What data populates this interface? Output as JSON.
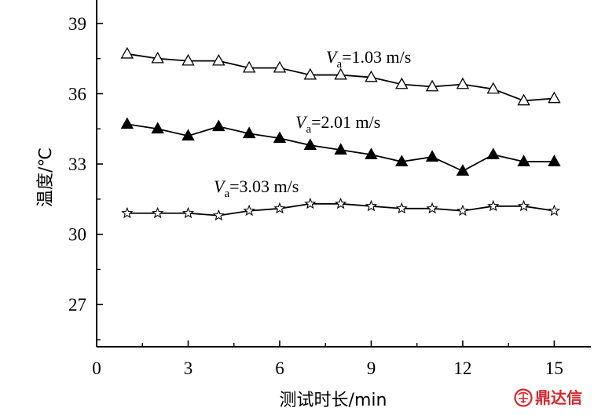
{
  "chart_data": {
    "type": "line",
    "x": [
      1,
      2,
      3,
      4,
      5,
      6,
      7,
      8,
      9,
      10,
      11,
      12,
      13,
      14,
      15
    ],
    "xlim": [
      0,
      16.2
    ],
    "ylim": [
      25.2,
      40
    ],
    "xticks": [
      0,
      3,
      6,
      9,
      12,
      15
    ],
    "yticks": [
      27,
      30,
      33,
      36,
      39
    ],
    "xlabel": "测试时长/min",
    "ylabel": "温度/℃",
    "grid": false,
    "series": [
      {
        "label_var": "V",
        "label_sub": "a",
        "label_value": "=1.03 m/s",
        "marker": "triangle-open",
        "values": [
          37.7,
          37.5,
          37.4,
          37.4,
          37.1,
          37.1,
          36.8,
          36.8,
          36.7,
          36.4,
          36.3,
          36.4,
          36.2,
          35.7,
          35.8
        ]
      },
      {
        "label_var": "V",
        "label_sub": "a",
        "label_value": "=2.01 m/s",
        "marker": "triangle-filled",
        "values": [
          34.7,
          34.5,
          34.2,
          34.6,
          34.3,
          34.1,
          33.8,
          33.6,
          33.4,
          33.1,
          33.3,
          32.7,
          33.4,
          33.1,
          33.1
        ]
      },
      {
        "label_var": "V",
        "label_sub": "a",
        "label_value": "=3.03 m/s",
        "marker": "star-open",
        "values": [
          30.9,
          30.9,
          30.9,
          30.8,
          31.0,
          31.1,
          31.3,
          31.3,
          31.2,
          31.1,
          31.1,
          31.0,
          31.2,
          31.2,
          31.0
        ]
      }
    ]
  },
  "watermark": {
    "text": "鼎达信",
    "color": "#d6262c",
    "icon": "seal-logo-icon"
  }
}
